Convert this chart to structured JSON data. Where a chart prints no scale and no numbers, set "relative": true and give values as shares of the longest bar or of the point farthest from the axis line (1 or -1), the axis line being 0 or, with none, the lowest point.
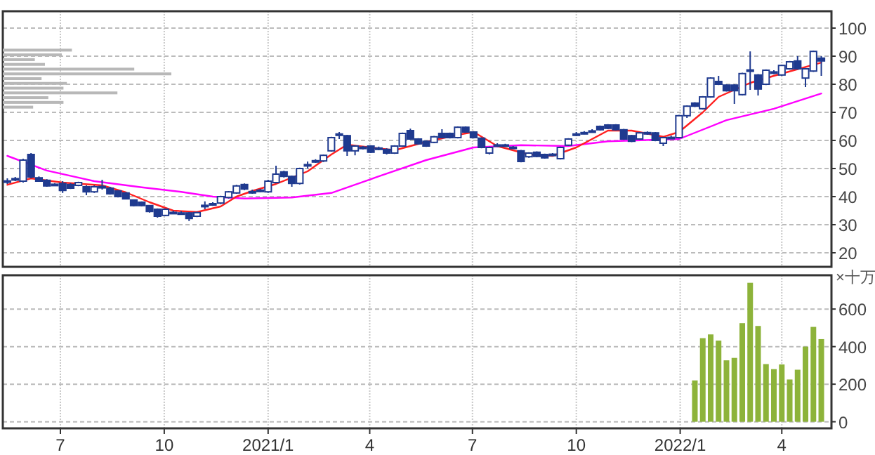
{
  "chart_data": [
    {
      "type": "candlestick",
      "xlim": [
        "2020-05-11",
        "2022-05-15"
      ],
      "ylim": [
        15,
        106
      ],
      "yticks": [
        20,
        30,
        40,
        50,
        60,
        70,
        80,
        90,
        100
      ],
      "grid": true,
      "tick_labels": "y",
      "xticks": [
        {
          "value": "2020-07-01",
          "label": null
        },
        {
          "value": "2020-10-01",
          "label": null
        },
        {
          "value": "2021-01-01",
          "label": null
        },
        {
          "value": "2021-04-01",
          "label": null
        },
        {
          "value": "2021-07-01",
          "label": null
        },
        {
          "value": "2021-10-01",
          "label": null
        },
        {
          "value": "2022-01-01",
          "label": null
        },
        {
          "value": "2022-04-01",
          "label": null
        }
      ],
      "series": [
        {
          "type": "line",
          "color": "#ff00ff",
          "x": [
            "2020-05-15",
            "2020-06-19",
            "2020-07-31",
            "2020-09-11",
            "2020-10-16",
            "2020-11-13",
            "2020-12-11",
            "2021-01-22",
            "2021-02-26",
            "2021-04-09",
            "2021-05-21",
            "2021-07-02",
            "2021-08-13",
            "2021-09-24",
            "2021-10-29",
            "2021-12-31",
            "2022-02-11",
            "2022-03-25",
            "2022-05-06"
          ],
          "values": [
            54.5,
            49.3,
            45.5,
            43.3,
            41.7,
            40,
            39.3,
            39.7,
            41.3,
            47.2,
            53,
            57.5,
            58.3,
            58,
            59.7,
            60.5,
            67.2,
            71.3,
            76.7
          ]
        },
        {
          "type": "line",
          "color": "#ff2020",
          "x": [
            "2020-05-15",
            "2020-06-05",
            "2020-07-03",
            "2020-08-07",
            "2020-08-28",
            "2020-09-18",
            "2020-10-09",
            "2020-10-30",
            "2020-11-20",
            "2020-12-04",
            "2020-12-18",
            "2021-01-08",
            "2021-02-05",
            "2021-02-26",
            "2021-03-12",
            "2021-04-02",
            "2021-04-23",
            "2021-05-21",
            "2021-06-18",
            "2021-07-02",
            "2021-07-23",
            "2021-08-20",
            "2021-09-10",
            "2021-10-01",
            "2021-10-29",
            "2021-11-19",
            "2021-12-17",
            "2021-12-31",
            "2022-01-21",
            "2022-02-04",
            "2022-03-04",
            "2022-03-25",
            "2022-05-06"
          ],
          "values": [
            44.2,
            46.5,
            45,
            44,
            41.5,
            38,
            35,
            34.5,
            36.5,
            40,
            42,
            44.5,
            49,
            55,
            58.5,
            57.5,
            56.5,
            59.5,
            62,
            63,
            58,
            55,
            54.5,
            57.5,
            63.5,
            63.5,
            61.3,
            63,
            70,
            75.5,
            80.5,
            83,
            87.7
          ]
        },
        {
          "type": "candlestick",
          "color": "#1f3a8f",
          "x": [
            "2020-05-15",
            "2020-05-22",
            "2020-05-29",
            "2020-06-05",
            "2020-06-12",
            "2020-06-19",
            "2020-06-26",
            "2020-07-03",
            "2020-07-10",
            "2020-07-17",
            "2020-07-24",
            "2020-07-31",
            "2020-08-07",
            "2020-08-14",
            "2020-08-21",
            "2020-08-28",
            "2020-09-04",
            "2020-09-11",
            "2020-09-18",
            "2020-09-25",
            "2020-10-02",
            "2020-10-09",
            "2020-10-16",
            "2020-10-23",
            "2020-10-30",
            "2020-11-06",
            "2020-11-13",
            "2020-11-20",
            "2020-11-27",
            "2020-12-04",
            "2020-12-11",
            "2020-12-18",
            "2020-12-25",
            "2021-01-01",
            "2021-01-08",
            "2021-01-15",
            "2021-01-22",
            "2021-01-29",
            "2021-02-05",
            "2021-02-12",
            "2021-02-19",
            "2021-02-26",
            "2021-03-05",
            "2021-03-12",
            "2021-03-19",
            "2021-03-26",
            "2021-04-02",
            "2021-04-09",
            "2021-04-16",
            "2021-04-23",
            "2021-04-30",
            "2021-05-07",
            "2021-05-14",
            "2021-05-21",
            "2021-05-28",
            "2021-06-04",
            "2021-06-11",
            "2021-06-18",
            "2021-06-25",
            "2021-07-02",
            "2021-07-09",
            "2021-07-16",
            "2021-07-23",
            "2021-07-30",
            "2021-08-06",
            "2021-08-13",
            "2021-08-20",
            "2021-08-27",
            "2021-09-03",
            "2021-09-10",
            "2021-09-17",
            "2021-09-24",
            "2021-10-01",
            "2021-10-08",
            "2021-10-15",
            "2021-10-22",
            "2021-10-29",
            "2021-11-05",
            "2021-11-12",
            "2021-11-19",
            "2021-11-26",
            "2021-12-03",
            "2021-12-10",
            "2021-12-17",
            "2021-12-24",
            "2021-12-31",
            "2022-01-07",
            "2022-01-14",
            "2022-01-21",
            "2022-01-28",
            "2022-02-04",
            "2022-02-11",
            "2022-02-18",
            "2022-02-25",
            "2022-03-04",
            "2022-03-11",
            "2022-03-18",
            "2022-03-25",
            "2022-04-01",
            "2022-04-08",
            "2022-04-15",
            "2022-04-22",
            "2022-04-29",
            "2022-05-06"
          ],
          "ohlc": [
            [
              45.3,
              46.5,
              44.5,
              45.6
            ],
            [
              46,
              47,
              45.5,
              46.4
            ],
            [
              45.5,
              53.5,
              45,
              53
            ],
            [
              55,
              55.5,
              46.5,
              47
            ],
            [
              46.7,
              47.2,
              45.3,
              45.5
            ],
            [
              45.8,
              46.2,
              43.5,
              43.8
            ],
            [
              44.2,
              44.8,
              43.8,
              44.4
            ],
            [
              44.7,
              45.5,
              41.3,
              42.2
            ],
            [
              44.3,
              44.8,
              42.7,
              43
            ],
            [
              44,
              45.3,
              43.7,
              45
            ],
            [
              43.5,
              44,
              40.5,
              41.7
            ],
            [
              41.7,
              44,
              41.3,
              43.5
            ],
            [
              43.3,
              46,
              42.5,
              43.6
            ],
            [
              43,
              43.5,
              40.7,
              41
            ],
            [
              42,
              42.3,
              39.7,
              40
            ],
            [
              41.3,
              41.6,
              39,
              39.2
            ],
            [
              38.8,
              39,
              36.5,
              36.8
            ],
            [
              38,
              38.3,
              36.5,
              36.8
            ],
            [
              36.8,
              37,
              34.3,
              34.7
            ],
            [
              35.5,
              35.8,
              32.5,
              33
            ],
            [
              33.3,
              35.8,
              33,
              35.5
            ],
            [
              34.3,
              35,
              33.8,
              34.4
            ],
            [
              34.2,
              34.8,
              33.7,
              34.1
            ],
            [
              34.2,
              34.5,
              31.3,
              32.2
            ],
            [
              33,
              34.6,
              32.7,
              34.3
            ],
            [
              36.7,
              38.3,
              35.5,
              36.9
            ],
            [
              37.5,
              38,
              36.7,
              37
            ],
            [
              37.7,
              40.3,
              37.3,
              40
            ],
            [
              39.7,
              42,
              39.3,
              41.7
            ],
            [
              41.3,
              44.2,
              41,
              43.8
            ],
            [
              44.3,
              44.7,
              42.3,
              42.7
            ],
            [
              41.6,
              42.5,
              41,
              41.8
            ],
            [
              42.1,
              42.8,
              41.6,
              42.3
            ],
            [
              41.7,
              46,
              41.3,
              45.5
            ],
            [
              45,
              51,
              44.7,
              48
            ],
            [
              48.8,
              49.2,
              46.8,
              47.2
            ],
            [
              47.2,
              47.5,
              43.5,
              44.7
            ],
            [
              44.7,
              50.3,
              44.3,
              50
            ],
            [
              51.2,
              52.5,
              50,
              51.4
            ],
            [
              52.6,
              53.3,
              52,
              52.8
            ],
            [
              52.7,
              55,
              52.3,
              54.7
            ],
            [
              56.3,
              61.3,
              56,
              61
            ],
            [
              62.1,
              63,
              60.5,
              62.3
            ],
            [
              61.7,
              62,
              54.5,
              56.3
            ],
            [
              56.3,
              58.3,
              54.7,
              58
            ],
            [
              57.4,
              58,
              56.8,
              57.6
            ],
            [
              58,
              58.3,
              55.5,
              55.8
            ],
            [
              57.1,
              57.8,
              56.5,
              57.3
            ],
            [
              56.8,
              57.2,
              55,
              55.5
            ],
            [
              55.5,
              58.3,
              55.2,
              58
            ],
            [
              58,
              62.8,
              57.7,
              62.5
            ],
            [
              63.5,
              64.2,
              60.2,
              60.5
            ],
            [
              60.5,
              60.8,
              58.5,
              58.8
            ],
            [
              59.7,
              60,
              57.7,
              58
            ],
            [
              59.3,
              61.6,
              59,
              61.3
            ],
            [
              62.5,
              64,
              60.7,
              61
            ],
            [
              62.5,
              62.8,
              60.7,
              61
            ],
            [
              61,
              65,
              60.7,
              64.7
            ],
            [
              64.7,
              65,
              62.7,
              63
            ],
            [
              63,
              63.3,
              60.7,
              61
            ],
            [
              60.8,
              61.1,
              57.2,
              57.5
            ],
            [
              55.5,
              57.8,
              55,
              57.5
            ],
            [
              58.2,
              59,
              57.7,
              58.4
            ],
            [
              58.2,
              58.8,
              57.8,
              58.4
            ],
            [
              57.4,
              58,
              57,
              57.6
            ],
            [
              56.3,
              56.6,
              52.2,
              52.5
            ],
            [
              54.2,
              55.8,
              53.8,
              55.5
            ],
            [
              55.8,
              56.1,
              54,
              54.3
            ],
            [
              55,
              55.3,
              53.5,
              53.8
            ],
            [
              54.9,
              55.5,
              54.5,
              55.1
            ],
            [
              53.5,
              57.8,
              53.2,
              57.5
            ],
            [
              58.3,
              60.8,
              58,
              60.5
            ],
            [
              62.1,
              63,
              61.5,
              62.3
            ],
            [
              62.6,
              63.3,
              62.2,
              62.8
            ],
            [
              63.2,
              64,
              62.8,
              63.4
            ],
            [
              65,
              65.3,
              63.5,
              63.8
            ],
            [
              65.5,
              65.8,
              64,
              64.3
            ],
            [
              65.5,
              65.8,
              63.5,
              63.8
            ],
            [
              63.8,
              64.1,
              60.2,
              60.5
            ],
            [
              61.7,
              62,
              59.4,
              59.7
            ],
            [
              60.5,
              63,
              60.2,
              62.7
            ],
            [
              62.6,
              63.2,
              62,
              62.8
            ],
            [
              62.7,
              63,
              59.7,
              60
            ],
            [
              59,
              61.3,
              58,
              61
            ],
            [
              60.9,
              61.7,
              60.5,
              61.1
            ],
            [
              61,
              69.1,
              60.7,
              68.8
            ],
            [
              68.8,
              72.5,
              68,
              72.2
            ],
            [
              73.3,
              73.6,
              71.9,
              72.2
            ],
            [
              71.3,
              75.8,
              71,
              75.5
            ],
            [
              75.5,
              82.5,
              75.2,
              82.2
            ],
            [
              81,
              83,
              79.7,
              80
            ],
            [
              79.7,
              80,
              77.4,
              77.7
            ],
            [
              79.7,
              80,
              73,
              77.7
            ],
            [
              76.3,
              84.1,
              76,
              83.8
            ],
            [
              84.9,
              91.7,
              78,
              85.1
            ],
            [
              83.3,
              83.6,
              76,
              78.3
            ],
            [
              80,
              85.3,
              79.7,
              85
            ],
            [
              84.2,
              85,
              83.6,
              84.4
            ],
            [
              83.3,
              87,
              83,
              86.7
            ],
            [
              85.5,
              88.3,
              85.2,
              88
            ],
            [
              88.3,
              90,
              85.2,
              85.5
            ],
            [
              82.2,
              85.8,
              79,
              85.5
            ],
            [
              84.7,
              92,
              84.4,
              91.7
            ],
            [
              89.3,
              90,
              83,
              88.3
            ]
          ]
        }
      ]
    },
    {
      "type": "bar",
      "orientation": "horizontal",
      "relative": true,
      "color": "#b8b8b8",
      "categories": [
        null,
        null,
        null,
        null,
        null,
        null,
        null,
        null,
        null,
        null,
        null,
        null,
        null
      ],
      "values": [
        0.41,
        0.35,
        0.19,
        0.25,
        0.78,
        1,
        0.23,
        0.38,
        0.36,
        0.68,
        0.27,
        0.36,
        0.18
      ]
    },
    {
      "type": "bar",
      "color": "#8db33a",
      "ylabel": "×十万",
      "xlim": [
        "2020-05-11",
        "2022-05-15"
      ],
      "ylim": [
        -35,
        780
      ],
      "yticks": [
        0,
        200,
        400,
        600
      ],
      "grid": true,
      "xticks": [
        {
          "value": "2020-07-01",
          "label": "7"
        },
        {
          "value": "2020-10-01",
          "label": "10"
        },
        {
          "value": "2021-01-01",
          "label": "2021/1"
        },
        {
          "value": "2021-04-01",
          "label": "4"
        },
        {
          "value": "2021-07-01",
          "label": "7"
        },
        {
          "value": "2021-10-01",
          "label": "10"
        },
        {
          "value": "2022-01-01",
          "label": "2022/1"
        },
        {
          "value": "2022-04-01",
          "label": "4"
        }
      ],
      "x": [
        "2022-01-14",
        "2022-01-21",
        "2022-01-28",
        "2022-02-04",
        "2022-02-11",
        "2022-02-18",
        "2022-02-25",
        "2022-03-04",
        "2022-03-11",
        "2022-03-18",
        "2022-03-25",
        "2022-04-01",
        "2022-04-08",
        "2022-04-15",
        "2022-04-22",
        "2022-04-29",
        "2022-05-06"
      ],
      "values": [
        220,
        445,
        465,
        432,
        327,
        340,
        525,
        740,
        510,
        307,
        280,
        305,
        225,
        277,
        400,
        505,
        440
      ]
    }
  ]
}
